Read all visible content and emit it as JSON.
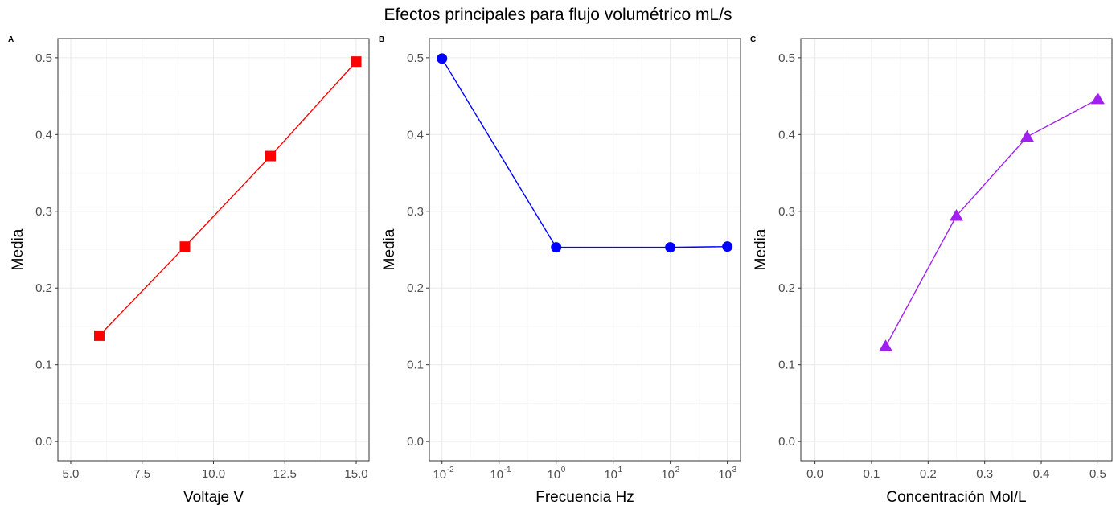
{
  "figure_title": "Efectos principales para flujo volumétrico mL/s",
  "chart_data": [
    {
      "panel": "A",
      "type": "line",
      "xlabel": "Voltaje V",
      "ylabel": "Media",
      "x_scale": "linear",
      "xlim": [
        4.55,
        15.45
      ],
      "ylim": [
        -0.025,
        0.525
      ],
      "x_ticks": [
        5.0,
        7.5,
        10.0,
        12.5,
        15.0
      ],
      "x_tick_labels": [
        "5.0",
        "7.5",
        "10.0",
        "12.5",
        "15.0"
      ],
      "y_ticks": [
        0.0,
        0.1,
        0.2,
        0.3,
        0.4,
        0.5
      ],
      "y_tick_labels": [
        "0.0",
        "0.1",
        "0.2",
        "0.3",
        "0.4",
        "0.5"
      ],
      "grid": true,
      "color": "#ff0000",
      "marker": "square",
      "x": [
        6,
        9,
        12,
        15
      ],
      "y": [
        0.138,
        0.254,
        0.372,
        0.495
      ]
    },
    {
      "panel": "B",
      "type": "line",
      "xlabel": "Frecuencia Hz",
      "ylabel": "Media",
      "x_scale": "log10",
      "xlim": [
        0.006,
        1700
      ],
      "ylim": [
        -0.025,
        0.525
      ],
      "x_ticks": [
        0.01,
        0.1,
        1,
        10,
        100,
        1000
      ],
      "x_tick_labels": [
        {
          "base": "10",
          "exp": "-2"
        },
        {
          "base": "10",
          "exp": "-1"
        },
        {
          "base": "10",
          "exp": "0"
        },
        {
          "base": "10",
          "exp": "1"
        },
        {
          "base": "10",
          "exp": "2"
        },
        {
          "base": "10",
          "exp": "3"
        }
      ],
      "y_ticks": [
        0.0,
        0.1,
        0.2,
        0.3,
        0.4,
        0.5
      ],
      "y_tick_labels": [
        "0.0",
        "0.1",
        "0.2",
        "0.3",
        "0.4",
        "0.5"
      ],
      "grid": true,
      "color": "#0000ff",
      "marker": "circle",
      "x": [
        0.01,
        1,
        100,
        1000
      ],
      "y": [
        0.499,
        0.253,
        0.253,
        0.254
      ]
    },
    {
      "panel": "C",
      "type": "line",
      "xlabel": "Concentración Mol/L",
      "ylabel": "Media",
      "x_scale": "linear",
      "xlim": [
        -0.025,
        0.525
      ],
      "ylim": [
        -0.025,
        0.525
      ],
      "x_ticks": [
        0.0,
        0.1,
        0.2,
        0.3,
        0.4,
        0.5
      ],
      "x_tick_labels": [
        "0.0",
        "0.1",
        "0.2",
        "0.3",
        "0.4",
        "0.5"
      ],
      "y_ticks": [
        0.0,
        0.1,
        0.2,
        0.3,
        0.4,
        0.5
      ],
      "y_tick_labels": [
        "0.0",
        "0.1",
        "0.2",
        "0.3",
        "0.4",
        "0.5"
      ],
      "grid": true,
      "color": "#a020f0",
      "marker": "triangle",
      "x": [
        0.125,
        0.25,
        0.375,
        0.5
      ],
      "y": [
        0.124,
        0.294,
        0.397,
        0.446
      ]
    }
  ]
}
